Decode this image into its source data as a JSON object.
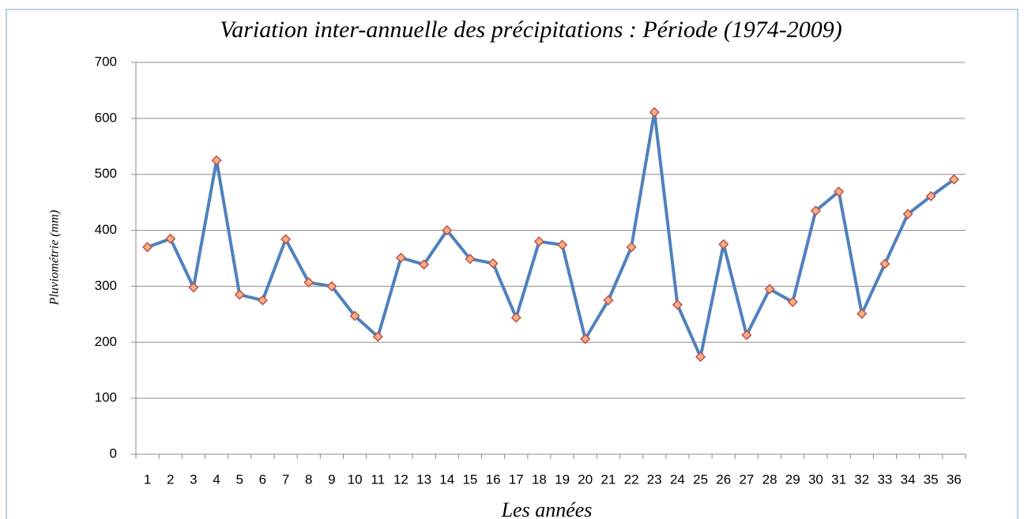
{
  "chart_data": {
    "type": "line",
    "title": "Variation inter-annuelle des précipitations : Période (1974-2009)",
    "y_label": "Pluviométrie (mm)",
    "x_label": "Les années",
    "categories": [
      "1",
      "2",
      "3",
      "4",
      "5",
      "6",
      "7",
      "8",
      "9",
      "10",
      "11",
      "12",
      "13",
      "14",
      "15",
      "16",
      "17",
      "18",
      "19",
      "20",
      "21",
      "22",
      "23",
      "24",
      "25",
      "26",
      "27",
      "28",
      "29",
      "30",
      "31",
      "32",
      "33",
      "34",
      "35",
      "36"
    ],
    "series": [
      {
        "name": "Pluviométrie",
        "color": "#4f81bd",
        "marker_color": "#f4b183",
        "marker_edge": "#c0504d",
        "values": [
          370,
          385,
          298,
          525,
          285,
          275,
          384,
          307,
          300,
          247,
          210,
          351,
          339,
          400,
          349,
          341,
          244,
          380,
          374,
          206,
          275,
          370,
          611,
          267,
          174,
          375,
          213,
          295,
          272,
          435,
          469,
          251,
          340,
          429,
          461,
          491
        ]
      }
    ],
    "ylim": [
      0,
      700
    ],
    "yticks": [
      0,
      100,
      200,
      300,
      400,
      500,
      600,
      700
    ],
    "grid": true
  }
}
